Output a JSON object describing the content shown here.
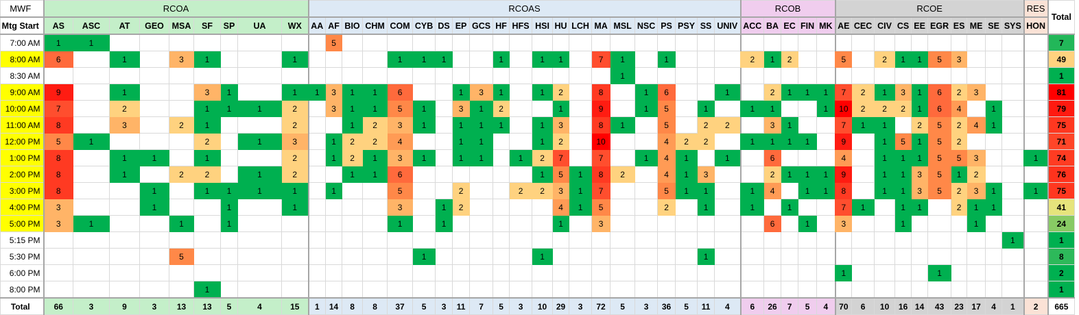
{
  "corner": {
    "top": "MWF",
    "bottom": "Mtg Start"
  },
  "total_header": "Total",
  "total_row_label": "Total",
  "grand_total": 665,
  "groups": [
    {
      "name": "RCOA",
      "color": "#c4efc9",
      "columns": [
        "AS",
        "ASC",
        "AT",
        "GEO",
        "MSA",
        "SF",
        "SP",
        "UA",
        "WX"
      ]
    },
    {
      "name": "RCOAS",
      "color": "#dde9f5",
      "columns": [
        "AA",
        "AF",
        "BIO",
        "CHM",
        "COM",
        "CYB",
        "DS",
        "EP",
        "GCS",
        "HF",
        "HFS",
        "HSI",
        "HU",
        "LCH",
        "MA",
        "MSL",
        "NSC",
        "PS",
        "PSY",
        "SS",
        "UNIV"
      ]
    },
    {
      "name": "RCOB",
      "color": "#f0cdee",
      "columns": [
        "ACC",
        "BA",
        "EC",
        "FIN",
        "MK"
      ]
    },
    {
      "name": "RCOE",
      "color": "#d3d3d3",
      "columns": [
        "AE",
        "CEC",
        "CIV",
        "CS",
        "EE",
        "EGR",
        "ES",
        "ME",
        "SE",
        "SYS"
      ]
    },
    {
      "name": "RES",
      "color": "#fbe2d6",
      "columns": [
        "HON"
      ]
    }
  ],
  "color_scale": {
    "1": "#00b050",
    "2": "#ffd27f",
    "3": "#ffb467",
    "4": "#ff9b55",
    "5": "#ff8848",
    "6": "#ff6a3c",
    "7": "#ff4e2e",
    "8": "#ff3a22",
    "9": "#ff1c12",
    "10": "#ff0000"
  },
  "total_col_colors": {
    "1": "#00b050",
    "2": "#00b050",
    "7": "#22b759",
    "8": "#2db95a",
    "24": "#88ca64",
    "41": "#e6e47c",
    "49": "#ffd27f",
    "71": "#ff4528",
    "74": "#ff3c22",
    "75": "#ff3820",
    "76": "#ff331d",
    "79": "#ff1a10",
    "81": "#ff0000"
  },
  "rows": [
    {
      "time": "7:00 AM",
      "highlight": false,
      "total": 7,
      "values": {
        "AS": 1,
        "ASC": 1,
        "AF": 5
      }
    },
    {
      "time": "8:00 AM",
      "highlight": true,
      "total": 49,
      "values": {
        "AS": 6,
        "AT": 1,
        "MSA": 3,
        "SF": 1,
        "WX": 1,
        "COM": 1,
        "CYB": 1,
        "DS": 1,
        "HF": 1,
        "HSI": 1,
        "HU": 1,
        "MA": 7,
        "MSL": 1,
        "PS": 1,
        "ACC": 2,
        "BA": 1,
        "EC": 2,
        "AE": 5,
        "CIV": 2,
        "CS": 1,
        "EE": 1,
        "EGR": 5,
        "ES": 3
      }
    },
    {
      "time": "8:30 AM",
      "highlight": false,
      "total": 1,
      "values": {
        "MSL": 1
      }
    },
    {
      "time": "9:00 AM",
      "highlight": true,
      "total": 81,
      "values": {
        "AS": 9,
        "AT": 1,
        "SF": 3,
        "SP": 1,
        "WX": 1,
        "AA": 1,
        "AF": 3,
        "BIO": 1,
        "CHM": 1,
        "COM": 6,
        "EP": 1,
        "GCS": 3,
        "HF": 1,
        "HSI": 1,
        "HU": 2,
        "MA": 8,
        "NSC": 1,
        "PS": 6,
        "UNIV": 1,
        "BA": 2,
        "EC": 1,
        "FIN": 1,
        "MK": 1,
        "AE": 7,
        "CEC": 2,
        "CIV": 1,
        "CS": 3,
        "EE": 1,
        "EGR": 6,
        "ES": 2,
        "ME": 3
      }
    },
    {
      "time": "10:00 AM",
      "highlight": true,
      "total": 79,
      "values": {
        "AS": 7,
        "AT": 2,
        "SF": 1,
        "SP": 1,
        "UA": 1,
        "WX": 2,
        "AF": 3,
        "BIO": 1,
        "CHM": 1,
        "COM": 5,
        "CYB": 1,
        "EP": 3,
        "GCS": 1,
        "HF": 2,
        "HU": 1,
        "MA": 9,
        "NSC": 1,
        "PS": 5,
        "SS": 1,
        "ACC": 1,
        "BA": 1,
        "MK": 1,
        "AE": 10,
        "CEC": 2,
        "CIV": 2,
        "CS": 2,
        "EE": 1,
        "EGR": 6,
        "ES": 4,
        "SE": 1
      }
    },
    {
      "time": "11:00 AM",
      "highlight": true,
      "total": 75,
      "values": {
        "AS": 8,
        "AT": 3,
        "MSA": 2,
        "SF": 1,
        "WX": 2,
        "BIO": 1,
        "CHM": 2,
        "COM": 3,
        "CYB": 1,
        "EP": 1,
        "GCS": 1,
        "HF": 1,
        "HSI": 1,
        "HU": 3,
        "MA": 8,
        "MSL": 1,
        "PS": 5,
        "SS": 2,
        "UNIV": 2,
        "BA": 3,
        "EC": 1,
        "AE": 7,
        "CEC": 1,
        "CIV": 1,
        "EE": 2,
        "EGR": 5,
        "ES": 2,
        "ME": 4,
        "SE": 1
      }
    },
    {
      "time": "12:00 PM",
      "highlight": true,
      "total": 71,
      "values": {
        "AS": 5,
        "ASC": 1,
        "SF": 2,
        "UA": 1,
        "WX": 3,
        "AF": 1,
        "BIO": 2,
        "CHM": 2,
        "COM": 4,
        "EP": 1,
        "GCS": 1,
        "HSI": 1,
        "HU": 2,
        "MA": 10,
        "PS": 4,
        "PSY": 2,
        "SS": 2,
        "ACC": 1,
        "BA": 1,
        "EC": 1,
        "FIN": 1,
        "AE": 9,
        "CIV": 1,
        "CS": 5,
        "EE": 1,
        "EGR": 5,
        "ES": 2
      }
    },
    {
      "time": "1:00 PM",
      "highlight": true,
      "total": 74,
      "values": {
        "AS": 8,
        "AT": 1,
        "GEO": 1,
        "SF": 1,
        "WX": 2,
        "AF": 1,
        "BIO": 2,
        "CHM": 1,
        "COM": 3,
        "CYB": 1,
        "EP": 1,
        "GCS": 1,
        "HFS": 1,
        "HSI": 2,
        "HU": 7,
        "MA": 7,
        "NSC": 1,
        "PS": 4,
        "PSY": 1,
        "UNIV": 1,
        "BA": 6,
        "AE": 4,
        "CIV": 1,
        "CS": 1,
        "EE": 1,
        "EGR": 5,
        "ES": 5,
        "ME": 3,
        "HON": 1
      }
    },
    {
      "time": "2:00 PM",
      "highlight": true,
      "total": 76,
      "values": {
        "AS": 8,
        "AT": 1,
        "MSA": 2,
        "SF": 2,
        "UA": 1,
        "WX": 2,
        "BIO": 1,
        "CHM": 1,
        "COM": 6,
        "HSI": 1,
        "HU": 5,
        "LCH": 1,
        "MA": 8,
        "MSL": 2,
        "PS": 4,
        "PSY": 1,
        "SS": 3,
        "BA": 2,
        "EC": 1,
        "FIN": 1,
        "MK": 1,
        "AE": 9,
        "CIV": 1,
        "CS": 1,
        "EE": 3,
        "EGR": 5,
        "ES": 1,
        "ME": 2
      }
    },
    {
      "time": "3:00 PM",
      "highlight": true,
      "total": 75,
      "values": {
        "AS": 8,
        "GEO": 1,
        "SF": 1,
        "SP": 1,
        "UA": 1,
        "WX": 1,
        "AF": 1,
        "COM": 5,
        "EP": 2,
        "HFS": 2,
        "HSI": 2,
        "HU": 3,
        "LCH": 1,
        "MA": 7,
        "PS": 5,
        "PSY": 1,
        "SS": 1,
        "ACC": 1,
        "BA": 4,
        "FIN": 1,
        "MK": 1,
        "AE": 8,
        "CIV": 1,
        "CS": 1,
        "EE": 3,
        "EGR": 5,
        "ES": 2,
        "ME": 3,
        "SE": 1,
        "HON": 1
      }
    },
    {
      "time": "4:00 PM",
      "highlight": true,
      "total": 41,
      "values": {
        "AS": 3,
        "GEO": 1,
        "SP": 1,
        "WX": 1,
        "COM": 3,
        "DS": 1,
        "EP": 2,
        "HU": 4,
        "LCH": 1,
        "MA": 5,
        "PS": 2,
        "SS": 1,
        "ACC": 1,
        "EC": 1,
        "AE": 7,
        "CEC": 1,
        "CS": 1,
        "EE": 1,
        "ES": 2,
        "ME": 1,
        "SE": 1
      }
    },
    {
      "time": "5:00 PM",
      "highlight": true,
      "total": 24,
      "values": {
        "AS": 3,
        "ASC": 1,
        "MSA": 1,
        "SP": 1,
        "COM": 1,
        "DS": 1,
        "HU": 1,
        "MA": 3,
        "BA": 6,
        "FIN": 1,
        "AE": 3,
        "CS": 1,
        "ME": 1
      }
    },
    {
      "time": "5:15 PM",
      "highlight": false,
      "total": 1,
      "values": {
        "SYS": 1
      }
    },
    {
      "time": "5:30 PM",
      "highlight": false,
      "total": 8,
      "values": {
        "MSA": 5,
        "CYB": 1,
        "HSI": 1,
        "SS": 1
      }
    },
    {
      "time": "6:00 PM",
      "highlight": false,
      "total": 2,
      "values": {
        "AE": 1,
        "EGR": 1
      }
    },
    {
      "time": "8:00 PM",
      "highlight": false,
      "total": 1,
      "values": {
        "SF": 1
      }
    }
  ],
  "column_totals": {
    "AS": 66,
    "ASC": 3,
    "AT": 9,
    "GEO": 3,
    "MSA": 13,
    "SF": 13,
    "SP": 5,
    "UA": 4,
    "WX": 15,
    "AA": 1,
    "AF": 14,
    "BIO": 8,
    "CHM": 8,
    "COM": 37,
    "CYB": 5,
    "DS": 3,
    "EP": 11,
    "GCS": 7,
    "HF": 5,
    "HFS": 3,
    "HSI": 10,
    "HU": 29,
    "LCH": 3,
    "MA": 72,
    "MSL": 5,
    "NSC": 3,
    "PS": 36,
    "PSY": 5,
    "SS": 11,
    "UNIV": 4,
    "ACC": 6,
    "BA": 26,
    "EC": 7,
    "FIN": 5,
    "MK": 4,
    "AE": 70,
    "CEC": 6,
    "CIV": 10,
    "CS": 16,
    "EE": 14,
    "EGR": 43,
    "ES": 23,
    "ME": 17,
    "SE": 4,
    "SYS": 1,
    "HON": 2
  }
}
